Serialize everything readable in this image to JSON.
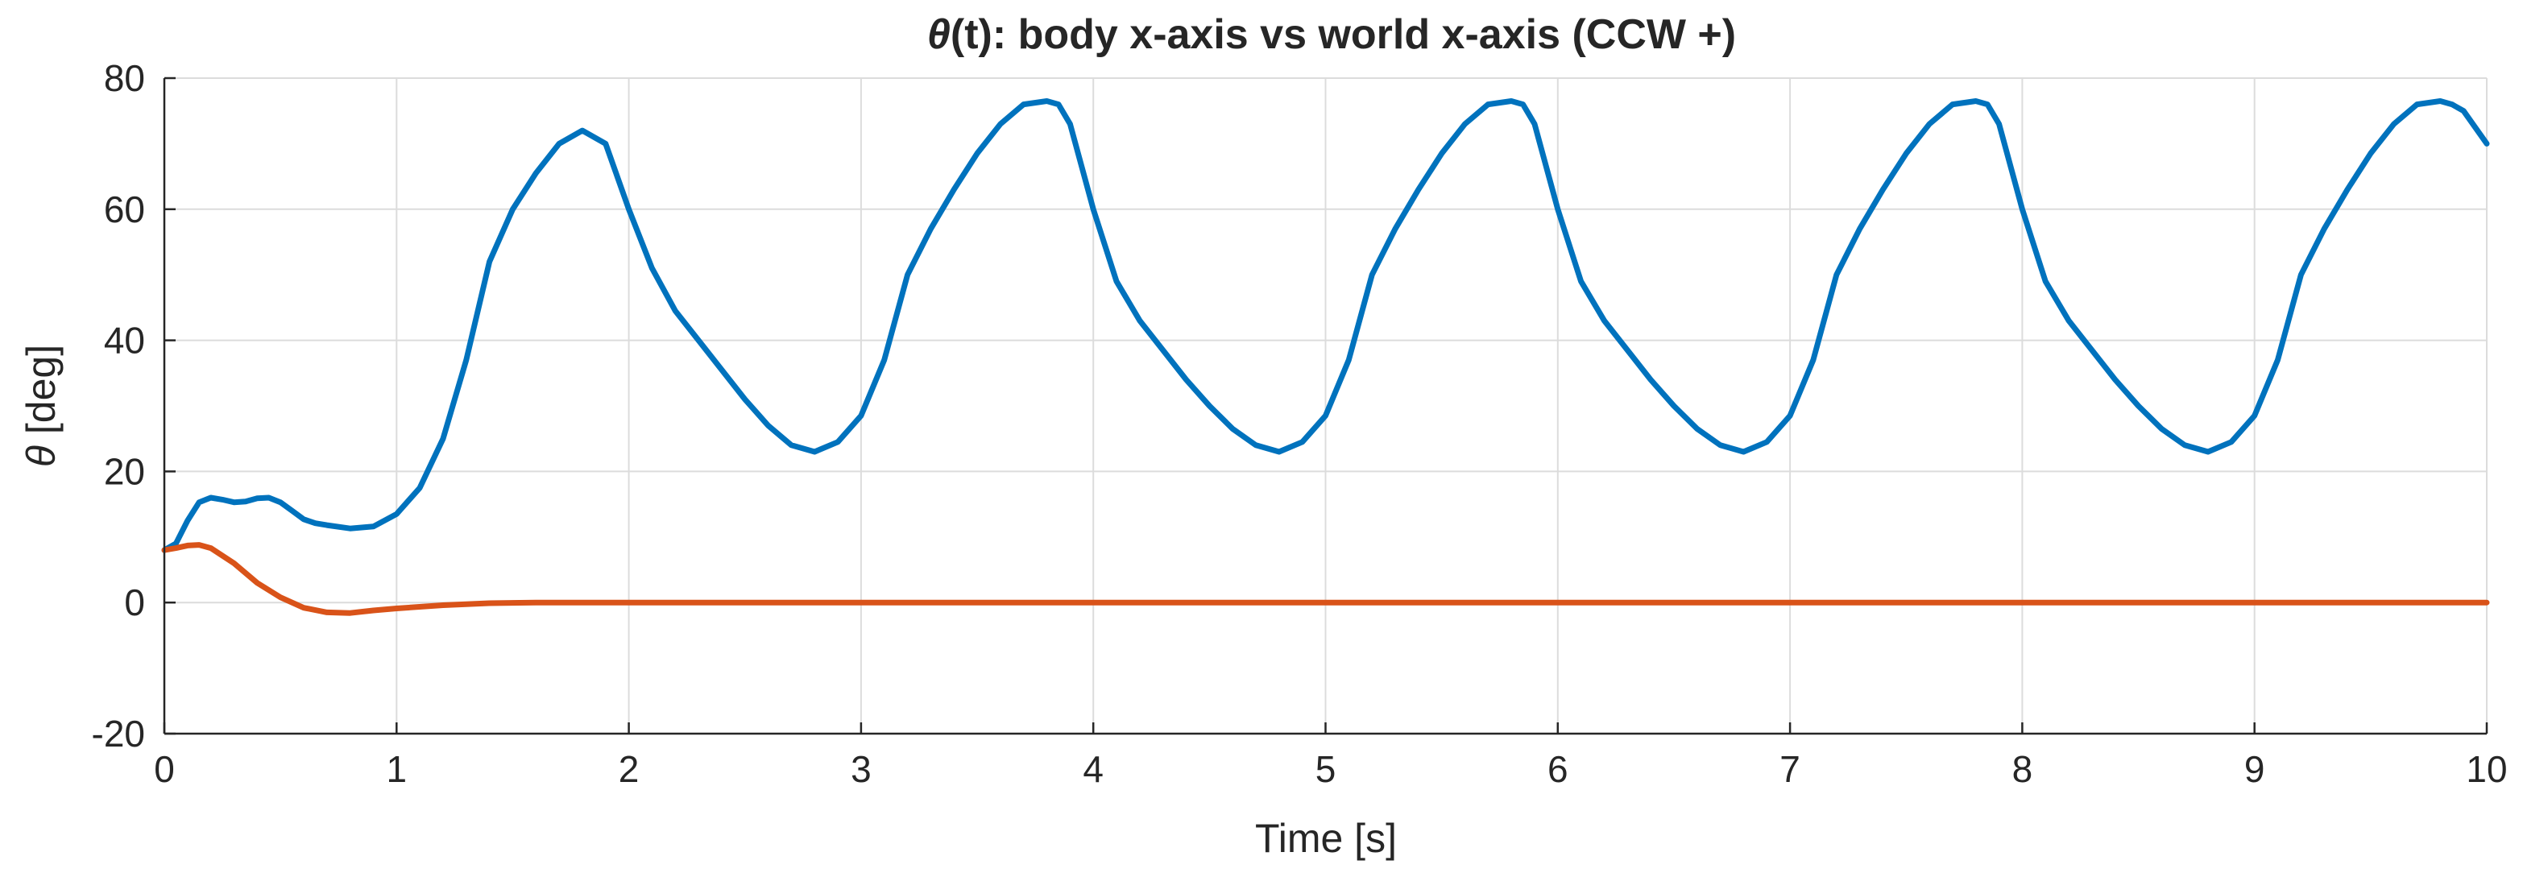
{
  "chart_data": {
    "type": "line",
    "title_symbol": "θ",
    "title_rest": "(t):  body  x-axis  vs  world  x-axis  (CCW  +)",
    "xlabel": "Time [s]",
    "ylabel_symbol": "θ",
    "ylabel_rest": "  [deg]",
    "xlim": [
      0,
      10
    ],
    "ylim": [
      -20,
      80
    ],
    "xticks": [
      0,
      1,
      2,
      3,
      4,
      5,
      6,
      7,
      8,
      9,
      10
    ],
    "yticks": [
      -20,
      0,
      20,
      40,
      60,
      80
    ],
    "grid": true,
    "legend": "none",
    "series": [
      {
        "color": "#0072BD",
        "points": [
          [
            0,
            8
          ],
          [
            0.05,
            9
          ],
          [
            0.1,
            12.5
          ],
          [
            0.15,
            15.3
          ],
          [
            0.2,
            16
          ],
          [
            0.25,
            15.7
          ],
          [
            0.3,
            15.3
          ],
          [
            0.35,
            15.4
          ],
          [
            0.4,
            15.9
          ],
          [
            0.45,
            16
          ],
          [
            0.5,
            15.3
          ],
          [
            0.55,
            14
          ],
          [
            0.6,
            12.7
          ],
          [
            0.65,
            12.1
          ],
          [
            0.7,
            11.8
          ],
          [
            0.8,
            11.3
          ],
          [
            0.9,
            11.6
          ],
          [
            1.0,
            13.5
          ],
          [
            1.1,
            17.5
          ],
          [
            1.2,
            25
          ],
          [
            1.3,
            37
          ],
          [
            1.4,
            52
          ],
          [
            1.5,
            60
          ],
          [
            1.6,
            65.5
          ],
          [
            1.7,
            70
          ],
          [
            1.8,
            72
          ],
          [
            1.9,
            70
          ],
          [
            2.0,
            60
          ],
          [
            2.1,
            51
          ],
          [
            2.2,
            44.5
          ],
          [
            2.3,
            40
          ],
          [
            2.4,
            35.5
          ],
          [
            2.5,
            31
          ],
          [
            2.6,
            27
          ],
          [
            2.7,
            24
          ],
          [
            2.8,
            23
          ],
          [
            2.9,
            24.5
          ],
          [
            3.0,
            28.5
          ],
          [
            3.1,
            37
          ],
          [
            3.2,
            50
          ],
          [
            3.3,
            57
          ],
          [
            3.4,
            63
          ],
          [
            3.5,
            68.5
          ],
          [
            3.6,
            73
          ],
          [
            3.7,
            76
          ],
          [
            3.8,
            76.5
          ],
          [
            3.85,
            76
          ],
          [
            3.9,
            73
          ],
          [
            4.0,
            60
          ],
          [
            4.1,
            49
          ],
          [
            4.2,
            43
          ],
          [
            4.3,
            38.5
          ],
          [
            4.4,
            34
          ],
          [
            4.5,
            30
          ],
          [
            4.6,
            26.5
          ],
          [
            4.7,
            24
          ],
          [
            4.8,
            23
          ],
          [
            4.9,
            24.5
          ],
          [
            5.0,
            28.5
          ],
          [
            5.1,
            37
          ],
          [
            5.2,
            50
          ],
          [
            5.3,
            57
          ],
          [
            5.4,
            63
          ],
          [
            5.5,
            68.5
          ],
          [
            5.6,
            73
          ],
          [
            5.7,
            76
          ],
          [
            5.8,
            76.5
          ],
          [
            5.85,
            76
          ],
          [
            5.9,
            73
          ],
          [
            6.0,
            60
          ],
          [
            6.1,
            49
          ],
          [
            6.2,
            43
          ],
          [
            6.3,
            38.5
          ],
          [
            6.4,
            34
          ],
          [
            6.5,
            30
          ],
          [
            6.6,
            26.5
          ],
          [
            6.7,
            24
          ],
          [
            6.8,
            23
          ],
          [
            6.9,
            24.5
          ],
          [
            7.0,
            28.5
          ],
          [
            7.1,
            37
          ],
          [
            7.2,
            50
          ],
          [
            7.3,
            57
          ],
          [
            7.4,
            63
          ],
          [
            7.5,
            68.5
          ],
          [
            7.6,
            73
          ],
          [
            7.7,
            76
          ],
          [
            7.8,
            76.5
          ],
          [
            7.85,
            76
          ],
          [
            7.9,
            73
          ],
          [
            8.0,
            60
          ],
          [
            8.1,
            49
          ],
          [
            8.2,
            43
          ],
          [
            8.3,
            38.5
          ],
          [
            8.4,
            34
          ],
          [
            8.5,
            30
          ],
          [
            8.6,
            26.5
          ],
          [
            8.7,
            24
          ],
          [
            8.8,
            23
          ],
          [
            8.9,
            24.5
          ],
          [
            9.0,
            28.5
          ],
          [
            9.1,
            37
          ],
          [
            9.2,
            50
          ],
          [
            9.3,
            57
          ],
          [
            9.4,
            63
          ],
          [
            9.5,
            68.5
          ],
          [
            9.6,
            73
          ],
          [
            9.7,
            76
          ],
          [
            9.8,
            76.5
          ],
          [
            9.85,
            76
          ],
          [
            9.9,
            75
          ],
          [
            10.0,
            70
          ]
        ]
      },
      {
        "color": "#D95319",
        "points": [
          [
            0,
            8
          ],
          [
            0.05,
            8.3
          ],
          [
            0.1,
            8.7
          ],
          [
            0.15,
            8.8
          ],
          [
            0.2,
            8.3
          ],
          [
            0.3,
            6
          ],
          [
            0.4,
            3
          ],
          [
            0.5,
            0.8
          ],
          [
            0.6,
            -0.8
          ],
          [
            0.7,
            -1.5
          ],
          [
            0.8,
            -1.6
          ],
          [
            0.9,
            -1.2
          ],
          [
            1.0,
            -0.9
          ],
          [
            1.2,
            -0.4
          ],
          [
            1.4,
            -0.1
          ],
          [
            1.6,
            0
          ],
          [
            2,
            0
          ],
          [
            3,
            0
          ],
          [
            4,
            0
          ],
          [
            5,
            0
          ],
          [
            6,
            0
          ],
          [
            7,
            0
          ],
          [
            8,
            0
          ],
          [
            9,
            0
          ],
          [
            10,
            0
          ]
        ]
      }
    ]
  }
}
